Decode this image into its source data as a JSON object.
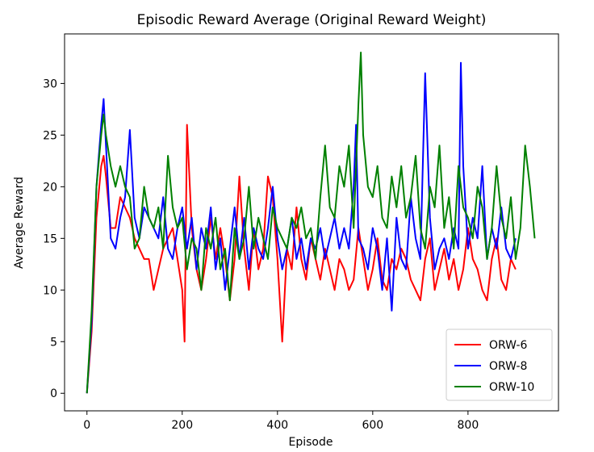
{
  "chart_data": {
    "type": "line",
    "title": "Episodic Reward Average (Original Reward Weight)",
    "xlabel": "Episode",
    "ylabel": "Average Reward",
    "xlim": [
      -47,
      990
    ],
    "ylim": [
      -1.7,
      34.8
    ],
    "xticks": [
      0,
      200,
      400,
      600,
      800
    ],
    "yticks": [
      0,
      5,
      10,
      15,
      20,
      25,
      30
    ],
    "grid": false,
    "legend_position": "lower right",
    "series": [
      {
        "name": "ORW-6",
        "color": "#ff0000",
        "x": [
          0,
          10,
          20,
          30,
          35,
          40,
          50,
          60,
          70,
          80,
          90,
          100,
          110,
          120,
          130,
          140,
          150,
          160,
          170,
          180,
          190,
          200,
          205,
          210,
          220,
          230,
          240,
          250,
          260,
          270,
          280,
          290,
          300,
          310,
          320,
          330,
          340,
          350,
          360,
          370,
          380,
          390,
          400,
          410,
          420,
          430,
          440,
          450,
          460,
          470,
          480,
          490,
          500,
          510,
          520,
          530,
          540,
          550,
          560,
          570,
          580,
          590,
          600,
          610,
          620,
          630,
          640,
          650,
          660,
          670,
          680,
          690,
          700,
          710,
          720,
          730,
          740,
          750,
          760,
          770,
          780,
          790,
          800,
          810,
          820,
          830,
          840,
          850,
          860,
          870,
          880,
          890,
          900
        ],
        "y": [
          0,
          6,
          17,
          22,
          23,
          21,
          16,
          16,
          19,
          18,
          17,
          15,
          14,
          13,
          13,
          10,
          12,
          14,
          15,
          16,
          13,
          10,
          5,
          26,
          16,
          12,
          10,
          13,
          17,
          13,
          16,
          13,
          9,
          13,
          21,
          14,
          10,
          16,
          12,
          14,
          21,
          19,
          13,
          5,
          14,
          12,
          18,
          13,
          11,
          15,
          13,
          11,
          14,
          12,
          10,
          13,
          12,
          10,
          11,
          16,
          13,
          10,
          12,
          15,
          11,
          10,
          13,
          12,
          14,
          13,
          11,
          10,
          9,
          13,
          15,
          10,
          12,
          14,
          11,
          13,
          10,
          12,
          16,
          13,
          12,
          10,
          9,
          13,
          15,
          11,
          10,
          13,
          12
        ]
      },
      {
        "name": "ORW-8",
        "color": "#0000ff",
        "x": [
          0,
          10,
          20,
          30,
          35,
          40,
          50,
          60,
          70,
          80,
          90,
          100,
          110,
          120,
          130,
          140,
          150,
          160,
          170,
          180,
          190,
          200,
          210,
          220,
          230,
          240,
          250,
          260,
          270,
          280,
          290,
          300,
          310,
          320,
          330,
          340,
          350,
          360,
          370,
          380,
          390,
          400,
          410,
          420,
          430,
          440,
          450,
          460,
          470,
          480,
          490,
          500,
          510,
          520,
          530,
          540,
          550,
          560,
          565,
          570,
          580,
          590,
          600,
          610,
          620,
          630,
          640,
          650,
          660,
          670,
          680,
          690,
          700,
          710,
          720,
          730,
          740,
          750,
          760,
          770,
          780,
          785,
          790,
          800,
          810,
          820,
          830,
          840,
          850,
          860,
          870,
          880,
          890,
          900
        ],
        "y": [
          0,
          7,
          20,
          26,
          28.5,
          24,
          15,
          14,
          17,
          19,
          25.5,
          17,
          15,
          18,
          17,
          16,
          15,
          19,
          14,
          13,
          16,
          18,
          14,
          17,
          12,
          16,
          14,
          18,
          12,
          15,
          10,
          14,
          18,
          13,
          17,
          12,
          16,
          14,
          13,
          16,
          20,
          15,
          12,
          14,
          17,
          13,
          15,
          12,
          15,
          14,
          16,
          13,
          15,
          17,
          14,
          16,
          14,
          20,
          26,
          15,
          14,
          12,
          16,
          14,
          10,
          15,
          8,
          17,
          13,
          12,
          19,
          15,
          13,
          31,
          17,
          12,
          14,
          15,
          13,
          16,
          14,
          32,
          22,
          14,
          17,
          15,
          22,
          13,
          16,
          14,
          18,
          14,
          13,
          15
        ]
      },
      {
        "name": "ORW-10",
        "color": "#008000",
        "x": [
          0,
          10,
          20,
          30,
          35,
          40,
          50,
          60,
          70,
          80,
          90,
          100,
          110,
          120,
          130,
          140,
          150,
          160,
          170,
          180,
          190,
          200,
          210,
          220,
          230,
          240,
          250,
          260,
          270,
          280,
          290,
          300,
          310,
          320,
          330,
          340,
          350,
          360,
          370,
          380,
          390,
          400,
          410,
          420,
          430,
          440,
          450,
          460,
          470,
          480,
          490,
          500,
          510,
          520,
          530,
          540,
          550,
          560,
          570,
          575,
          580,
          590,
          600,
          610,
          620,
          630,
          640,
          650,
          660,
          670,
          680,
          690,
          700,
          710,
          720,
          730,
          740,
          750,
          760,
          770,
          780,
          790,
          800,
          810,
          820,
          830,
          840,
          850,
          860,
          870,
          880,
          890,
          900,
          910,
          920,
          930,
          940
        ],
        "y": [
          0,
          8,
          20,
          25,
          27,
          25,
          22,
          20,
          22,
          20,
          19,
          14,
          15,
          20,
          17,
          16,
          18,
          14,
          23,
          18,
          16,
          17,
          12,
          15,
          14,
          10,
          16,
          14,
          17,
          12,
          14,
          9,
          16,
          13,
          15,
          20,
          14,
          17,
          15,
          13,
          18,
          16,
          15,
          14,
          17,
          16,
          18,
          15,
          16,
          13,
          19,
          24,
          18,
          17,
          22,
          20,
          24,
          16,
          28,
          33,
          25,
          20,
          19,
          22,
          17,
          16,
          21,
          18,
          22,
          17,
          19,
          23,
          16,
          14,
          20,
          18,
          24,
          16,
          19,
          14,
          22,
          18,
          17,
          15,
          20,
          18,
          13,
          16,
          22,
          17,
          15,
          19,
          13,
          16,
          24,
          20,
          15
        ]
      }
    ]
  }
}
